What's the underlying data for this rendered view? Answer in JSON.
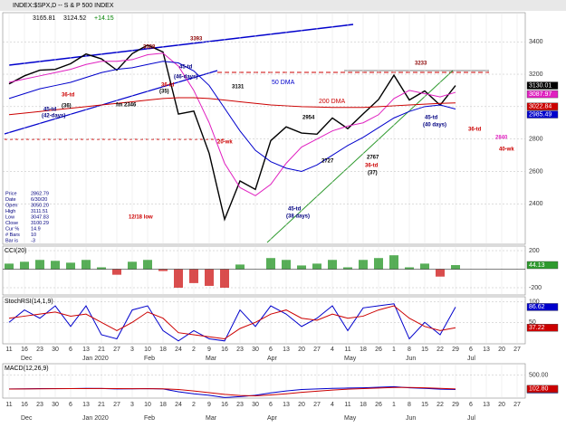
{
  "chart_data": [
    {
      "type": "line",
      "title": "INDEX:$SPX,D -- S & P 500 INDEX",
      "header_values": [
        "3165.81",
        "3124.52",
        "+14.15"
      ],
      "categories": [
        "11",
        "16",
        "23",
        "30",
        "6",
        "13",
        "21",
        "27",
        "3",
        "10",
        "18",
        "24",
        "2",
        "9",
        "16",
        "23",
        "30",
        "6",
        "13",
        "20",
        "27",
        "4",
        "11",
        "18",
        "26",
        "1",
        "8",
        "15",
        "22",
        "29",
        "6",
        "13",
        "20",
        "27"
      ],
      "months": [
        "Dec",
        "Jan 2020",
        "Feb",
        "Mar",
        "Apr",
        "May",
        "Jun",
        "Jul"
      ],
      "ylim": [
        2150,
        3580
      ],
      "yticks": [
        2400,
        2600,
        2800,
        3000,
        3200,
        3400
      ],
      "grid": true,
      "series": [
        {
          "color": "#000000",
          "current": "3130.01",
          "values": [
            3140,
            3190,
            3225,
            3230,
            3265,
            3325,
            3295,
            3225,
            3327,
            3380,
            3337,
            2954,
            2972,
            2711,
            2304,
            2541,
            2489,
            2790,
            2875,
            2837,
            2830,
            2930,
            2864,
            2955,
            3044,
            3194,
            3041,
            3097,
            3009,
            3130,
            null,
            null,
            null,
            null
          ]
        },
        {
          "color": "#e020c0",
          "current": "3087.97",
          "values": [
            3150,
            3170,
            3190,
            3210,
            3230,
            3260,
            3280,
            3280,
            3290,
            3320,
            3330,
            3250,
            3100,
            2900,
            2650,
            2500,
            2450,
            2520,
            2650,
            2750,
            2800,
            2850,
            2880,
            2900,
            2950,
            3050,
            3100,
            3080,
            3060,
            3088,
            null,
            null,
            null,
            null
          ]
        },
        {
          "name": "200 DMA",
          "color": "#cc0000",
          "current": "3022.84",
          "values": [
            2950,
            2960,
            2970,
            2980,
            2990,
            3000,
            3010,
            3020,
            3030,
            3040,
            3050,
            3055,
            3055,
            3050,
            3040,
            3030,
            3020,
            3010,
            3005,
            3000,
            2998,
            2995,
            2995,
            2995,
            3000,
            3005,
            3010,
            3015,
            3020,
            3023,
            null,
            null,
            null,
            null
          ]
        },
        {
          "name": "50 DMA",
          "color": "#0000cc",
          "current": "2985.49",
          "values": [
            3050,
            3080,
            3110,
            3130,
            3150,
            3180,
            3210,
            3230,
            3240,
            3260,
            3280,
            3270,
            3220,
            3130,
            2990,
            2850,
            2730,
            2660,
            2620,
            2600,
            2640,
            2700,
            2760,
            2810,
            2870,
            2930,
            2970,
            3000,
            3010,
            2985,
            null,
            null,
            null,
            null
          ]
        }
      ],
      "info": [
        [
          "Price",
          "2862.79"
        ],
        [
          "Date",
          "6/30/20"
        ],
        [
          "Open",
          "3050.20"
        ],
        [
          "High",
          "3111.51"
        ],
        [
          "Low",
          "3047.83"
        ],
        [
          "Close",
          "3100.29"
        ],
        [
          "Cur %",
          "14.9"
        ],
        [
          "# Bars",
          "10"
        ],
        [
          "Bar is",
          "-3"
        ]
      ],
      "annotations": [
        {
          "text": "3328",
          "color": "#8b0000"
        },
        {
          "text": "3393",
          "color": "#8b0000"
        },
        {
          "text": "3233",
          "color": "#8b0000"
        },
        {
          "text": "3131",
          "color": "#000000"
        },
        {
          "text": "2954",
          "color": "#000000"
        },
        {
          "text": "2727",
          "color": "#000000"
        },
        {
          "text": "2767",
          "color": "#000000"
        },
        {
          "text": "36-td",
          "color": "#cc0000"
        },
        {
          "text": "45-td",
          "color": "#000080"
        },
        {
          "text": "(42-days)",
          "color": "#000080"
        },
        {
          "text": "(36)",
          "color": "#000000"
        },
        {
          "text": "fm 2346",
          "color": "#000000"
        },
        {
          "text": "36-td",
          "color": "#cc0000"
        },
        {
          "text": "(35)",
          "color": "#000000"
        },
        {
          "text": "45-td",
          "color": "#000080"
        },
        {
          "text": "(46-days)",
          "color": "#000080"
        },
        {
          "text": "20-wk",
          "color": "#cc0000"
        },
        {
          "text": "12/18 low",
          "color": "#cc0000"
        },
        {
          "text": "45-td",
          "color": "#000080"
        },
        {
          "text": "(38 days)",
          "color": "#000080"
        },
        {
          "text": "36-td",
          "color": "#cc0000"
        },
        {
          "text": "(37)",
          "color": "#000000"
        },
        {
          "text": "45-td",
          "color": "#000080"
        },
        {
          "text": "(40 days)",
          "color": "#000080"
        },
        {
          "text": "36-td",
          "color": "#cc0000"
        },
        {
          "text": "2840",
          "color": "#e020c0"
        },
        {
          "text": "40-wk",
          "color": "#cc0000"
        }
      ]
    },
    {
      "type": "bar",
      "title": "CCI(20)",
      "ylim": [
        -278,
        249
      ],
      "yticks": [
        200,
        -200
      ],
      "series": [
        {
          "color": "#2e9a2e",
          "negative_color": "#d02020",
          "current": "44.13",
          "values": [
            60,
            80,
            100,
            90,
            70,
            100,
            20,
            -60,
            80,
            100,
            -20,
            -200,
            -150,
            -180,
            -200,
            50,
            0,
            120,
            100,
            40,
            60,
            100,
            20,
            100,
            120,
            150,
            20,
            60,
            -80,
            44,
            null,
            null,
            null,
            null
          ]
        }
      ]
    },
    {
      "type": "line",
      "title": "StochRSI(14,1,9)",
      "ylim": [
        -2,
        112
      ],
      "yticks": [
        100,
        50
      ],
      "series": [
        {
          "color": "#0000cc",
          "current": "86.62",
          "values": [
            50,
            80,
            60,
            90,
            40,
            90,
            20,
            10,
            80,
            90,
            30,
            5,
            30,
            10,
            5,
            80,
            40,
            90,
            70,
            40,
            60,
            90,
            30,
            85,
            90,
            95,
            10,
            50,
            20,
            87,
            null,
            null,
            null,
            null
          ]
        },
        {
          "color": "#cc0000",
          "current": "37.22",
          "values": [
            60,
            65,
            70,
            75,
            65,
            70,
            50,
            30,
            50,
            75,
            60,
            25,
            20,
            15,
            10,
            35,
            50,
            70,
            80,
            60,
            55,
            70,
            60,
            65,
            80,
            90,
            60,
            40,
            30,
            37,
            null,
            null,
            null,
            null
          ]
        }
      ]
    },
    {
      "type": "line",
      "title": "MACD(12,26,9)",
      "ylim": [
        -300,
        900
      ],
      "yticks": [
        {
          "value": 500,
          "label": "500.00"
        }
      ],
      "series": [
        {
          "color": "#0000cc",
          "current": "0.03",
          "values": [
            20,
            25,
            30,
            30,
            30,
            40,
            35,
            20,
            25,
            30,
            20,
            -80,
            -150,
            -200,
            -280,
            -250,
            -200,
            -120,
            -50,
            0,
            20,
            40,
            50,
            60,
            80,
            100,
            60,
            40,
            10,
            0,
            null,
            null,
            null,
            null
          ]
        },
        {
          "color": "#cc0000",
          "current": "102.80",
          "values": [
            15,
            20,
            25,
            28,
            30,
            33,
            35,
            30,
            28,
            28,
            25,
            0,
            -50,
            -110,
            -170,
            -210,
            -220,
            -190,
            -150,
            -100,
            -60,
            -20,
            10,
            30,
            50,
            70,
            70,
            60,
            40,
            20,
            null,
            null,
            null,
            null
          ]
        }
      ]
    }
  ]
}
